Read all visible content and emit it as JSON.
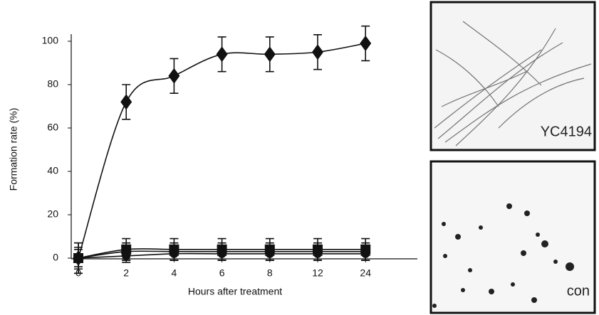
{
  "chart_data": {
    "type": "line",
    "xlabel": "Hours after treatment",
    "ylabel": "Formation rate (%)",
    "categories": [
      "0",
      "2",
      "4",
      "6",
      "8",
      "12",
      "24"
    ],
    "ylim": [
      0,
      100
    ],
    "yticks": [
      0,
      20,
      40,
      60,
      80,
      100
    ],
    "series": [
      {
        "marker": "diamond",
        "color": "#111111",
        "values": [
          0,
          72,
          84,
          94,
          94,
          95,
          99
        ],
        "errors": [
          7,
          8,
          8,
          8,
          8,
          8,
          8
        ]
      },
      {
        "marker": "square",
        "color": "#111111",
        "values": [
          0,
          4,
          4,
          4,
          4,
          4,
          4
        ],
        "errors": [
          7,
          5,
          5,
          5,
          5,
          5,
          5
        ]
      },
      {
        "marker": "triangle",
        "color": "#111111",
        "values": [
          0,
          3,
          3,
          3,
          3,
          3,
          3
        ],
        "errors": [
          5,
          4,
          4,
          4,
          4,
          4,
          4
        ]
      },
      {
        "marker": "circle",
        "color": "#111111",
        "values": [
          0,
          1,
          2,
          2,
          2,
          2,
          2
        ],
        "errors": [
          4,
          3,
          3,
          3,
          3,
          3,
          3
        ]
      }
    ]
  },
  "images": [
    {
      "label": "YC4194"
    },
    {
      "label": "con"
    }
  ]
}
